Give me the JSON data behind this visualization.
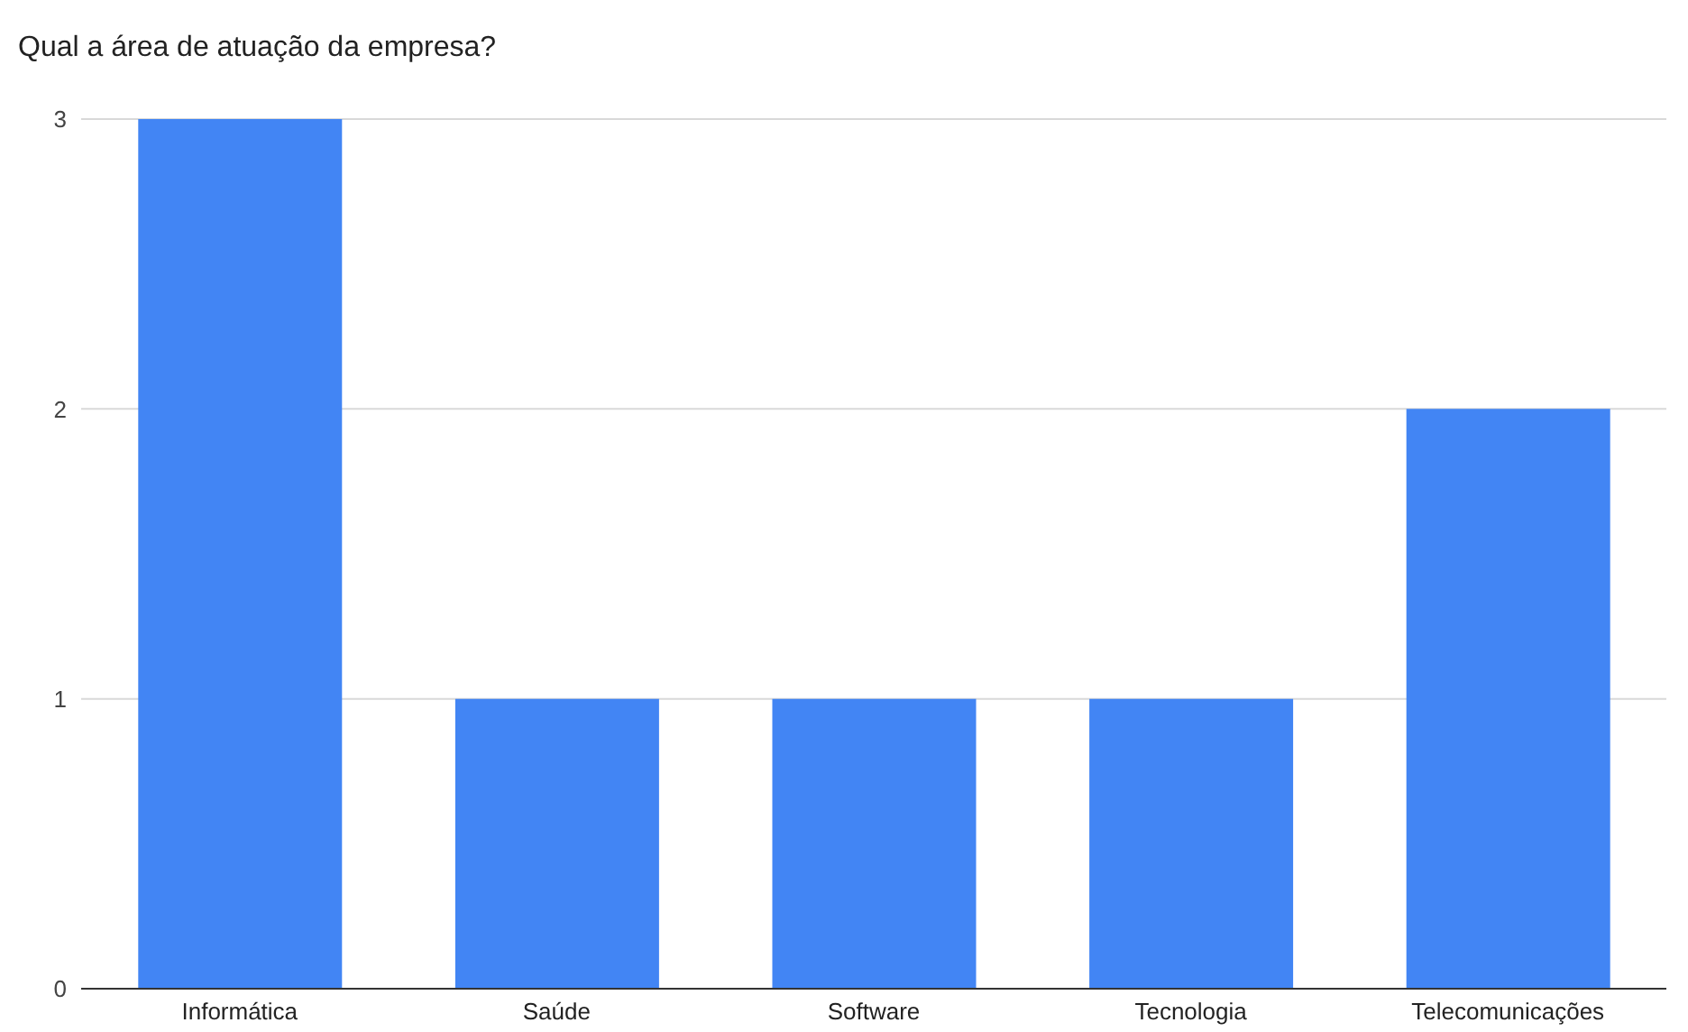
{
  "chart_data": {
    "type": "bar",
    "title": "Qual a área de atuação da empresa?",
    "categories": [
      "Informática",
      "Saúde",
      "Software",
      "Tecnologia",
      "Telecomunicações"
    ],
    "values": [
      3,
      1,
      1,
      1,
      2
    ],
    "color": "#4285f4",
    "ylim": [
      0,
      3
    ],
    "yticks": [
      0,
      1,
      2,
      3
    ],
    "grid": "y"
  }
}
